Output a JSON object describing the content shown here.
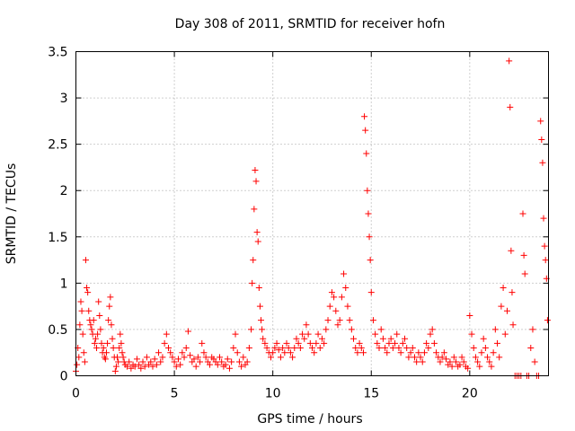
{
  "chart_data": {
    "type": "scatter",
    "title": "Day 308 of 2011, SRMTID for receiver hofn",
    "xlabel": "GPS time / hours",
    "ylabel": "SRMTID / TECUs",
    "xlim": [
      0,
      24
    ],
    "ylim": [
      0,
      3.5
    ],
    "x_ticks": [
      0,
      5,
      10,
      15,
      20
    ],
    "x_tick_labels": [
      "0",
      "5",
      "10",
      "15",
      "20"
    ],
    "y_ticks": [
      0,
      0.5,
      1,
      1.5,
      2,
      2.5,
      3,
      3.5
    ],
    "y_tick_labels": [
      "0",
      "0.5",
      "1",
      "1.5",
      "2",
      "2.5",
      "3",
      "3.5"
    ],
    "grid": true,
    "marker": "+",
    "color": "#ff0000",
    "series": [
      {
        "points": [
          [
            0.0,
            0.05
          ],
          [
            0.05,
            0.12
          ],
          [
            0.1,
            0.3
          ],
          [
            0.15,
            0.2
          ],
          [
            0.2,
            0.55
          ],
          [
            0.25,
            0.8
          ],
          [
            0.3,
            0.7
          ],
          [
            0.35,
            0.45
          ],
          [
            0.4,
            0.25
          ],
          [
            0.45,
            0.15
          ],
          [
            0.5,
            1.25
          ],
          [
            0.55,
            0.95
          ],
          [
            0.6,
            0.9
          ],
          [
            0.65,
            0.7
          ],
          [
            0.7,
            0.6
          ],
          [
            0.75,
            0.55
          ],
          [
            0.8,
            0.5
          ],
          [
            0.85,
            0.45
          ],
          [
            0.9,
            0.6
          ],
          [
            0.95,
            0.35
          ],
          [
            1.0,
            0.4
          ],
          [
            1.05,
            0.3
          ],
          [
            1.1,
            0.45
          ],
          [
            1.15,
            0.8
          ],
          [
            1.2,
            0.65
          ],
          [
            1.25,
            0.5
          ],
          [
            1.3,
            0.35
          ],
          [
            1.35,
            0.25
          ],
          [
            1.4,
            0.3
          ],
          [
            1.45,
            0.2
          ],
          [
            1.5,
            0.18
          ],
          [
            1.55,
            0.25
          ],
          [
            1.6,
            0.35
          ],
          [
            1.65,
            0.6
          ],
          [
            1.7,
            0.75
          ],
          [
            1.75,
            0.85
          ],
          [
            1.8,
            0.55
          ],
          [
            1.85,
            0.4
          ],
          [
            1.9,
            0.3
          ],
          [
            1.95,
            0.2
          ],
          [
            2.0,
            0.05
          ],
          [
            2.05,
            0.1
          ],
          [
            2.1,
            0.2
          ],
          [
            2.15,
            0.15
          ],
          [
            2.2,
            0.3
          ],
          [
            2.25,
            0.45
          ],
          [
            2.3,
            0.35
          ],
          [
            2.35,
            0.25
          ],
          [
            2.4,
            0.2
          ],
          [
            2.45,
            0.15
          ],
          [
            2.5,
            0.12
          ],
          [
            2.6,
            0.1
          ],
          [
            2.7,
            0.15
          ],
          [
            2.8,
            0.08
          ],
          [
            2.9,
            0.12
          ],
          [
            3.0,
            0.1
          ],
          [
            3.1,
            0.18
          ],
          [
            3.2,
            0.12
          ],
          [
            3.3,
            0.08
          ],
          [
            3.4,
            0.15
          ],
          [
            3.5,
            0.1
          ],
          [
            3.6,
            0.2
          ],
          [
            3.7,
            0.12
          ],
          [
            3.8,
            0.15
          ],
          [
            3.9,
            0.1
          ],
          [
            4.0,
            0.18
          ],
          [
            4.1,
            0.12
          ],
          [
            4.2,
            0.25
          ],
          [
            4.3,
            0.15
          ],
          [
            4.4,
            0.2
          ],
          [
            4.5,
            0.35
          ],
          [
            4.6,
            0.45
          ],
          [
            4.7,
            0.3
          ],
          [
            4.8,
            0.25
          ],
          [
            4.9,
            0.2
          ],
          [
            5.0,
            0.15
          ],
          [
            5.1,
            0.1
          ],
          [
            5.2,
            0.18
          ],
          [
            5.3,
            0.12
          ],
          [
            5.4,
            0.25
          ],
          [
            5.5,
            0.2
          ],
          [
            5.6,
            0.3
          ],
          [
            5.7,
            0.48
          ],
          [
            5.8,
            0.22
          ],
          [
            5.9,
            0.15
          ],
          [
            6.0,
            0.18
          ],
          [
            6.1,
            0.1
          ],
          [
            6.2,
            0.2
          ],
          [
            6.3,
            0.15
          ],
          [
            6.4,
            0.35
          ],
          [
            6.5,
            0.25
          ],
          [
            6.6,
            0.2
          ],
          [
            6.7,
            0.15
          ],
          [
            6.8,
            0.12
          ],
          [
            6.9,
            0.2
          ],
          [
            7.0,
            0.18
          ],
          [
            7.1,
            0.15
          ],
          [
            7.2,
            0.12
          ],
          [
            7.3,
            0.2
          ],
          [
            7.4,
            0.15
          ],
          [
            7.5,
            0.1
          ],
          [
            7.6,
            0.12
          ],
          [
            7.7,
            0.18
          ],
          [
            7.8,
            0.08
          ],
          [
            7.9,
            0.15
          ],
          [
            8.0,
            0.3
          ],
          [
            8.1,
            0.45
          ],
          [
            8.2,
            0.25
          ],
          [
            8.3,
            0.15
          ],
          [
            8.4,
            0.1
          ],
          [
            8.5,
            0.2
          ],
          [
            8.6,
            0.12
          ],
          [
            8.7,
            0.15
          ],
          [
            8.8,
            0.3
          ],
          [
            8.9,
            0.5
          ],
          [
            8.95,
            1.0
          ],
          [
            9.0,
            1.25
          ],
          [
            9.05,
            1.8
          ],
          [
            9.1,
            2.22
          ],
          [
            9.15,
            2.1
          ],
          [
            9.2,
            1.55
          ],
          [
            9.25,
            1.45
          ],
          [
            9.3,
            0.95
          ],
          [
            9.35,
            0.75
          ],
          [
            9.4,
            0.6
          ],
          [
            9.45,
            0.5
          ],
          [
            9.5,
            0.4
          ],
          [
            9.6,
            0.35
          ],
          [
            9.7,
            0.3
          ],
          [
            9.8,
            0.25
          ],
          [
            9.9,
            0.2
          ],
          [
            10.0,
            0.25
          ],
          [
            10.1,
            0.3
          ],
          [
            10.2,
            0.35
          ],
          [
            10.3,
            0.28
          ],
          [
            10.4,
            0.2
          ],
          [
            10.5,
            0.3
          ],
          [
            10.6,
            0.25
          ],
          [
            10.7,
            0.35
          ],
          [
            10.8,
            0.3
          ],
          [
            10.9,
            0.25
          ],
          [
            11.0,
            0.2
          ],
          [
            11.1,
            0.3
          ],
          [
            11.2,
            0.4
          ],
          [
            11.3,
            0.35
          ],
          [
            11.4,
            0.3
          ],
          [
            11.5,
            0.45
          ],
          [
            11.6,
            0.4
          ],
          [
            11.7,
            0.55
          ],
          [
            11.8,
            0.45
          ],
          [
            11.9,
            0.35
          ],
          [
            12.0,
            0.3
          ],
          [
            12.1,
            0.25
          ],
          [
            12.2,
            0.35
          ],
          [
            12.3,
            0.45
          ],
          [
            12.4,
            0.3
          ],
          [
            12.5,
            0.4
          ],
          [
            12.6,
            0.35
          ],
          [
            12.7,
            0.5
          ],
          [
            12.8,
            0.6
          ],
          [
            12.9,
            0.75
          ],
          [
            13.0,
            0.9
          ],
          [
            13.1,
            0.85
          ],
          [
            13.2,
            0.7
          ],
          [
            13.3,
            0.55
          ],
          [
            13.4,
            0.6
          ],
          [
            13.5,
            0.85
          ],
          [
            13.6,
            1.1
          ],
          [
            13.7,
            0.95
          ],
          [
            13.8,
            0.75
          ],
          [
            13.9,
            0.6
          ],
          [
            14.0,
            0.5
          ],
          [
            14.1,
            0.4
          ],
          [
            14.2,
            0.3
          ],
          [
            14.3,
            0.25
          ],
          [
            14.4,
            0.35
          ],
          [
            14.5,
            0.3
          ],
          [
            14.6,
            0.25
          ],
          [
            14.65,
            2.8
          ],
          [
            14.7,
            2.65
          ],
          [
            14.75,
            2.4
          ],
          [
            14.8,
            2.0
          ],
          [
            14.85,
            1.75
          ],
          [
            14.9,
            1.5
          ],
          [
            14.95,
            1.25
          ],
          [
            15.0,
            0.9
          ],
          [
            15.1,
            0.6
          ],
          [
            15.2,
            0.45
          ],
          [
            15.3,
            0.35
          ],
          [
            15.4,
            0.3
          ],
          [
            15.5,
            0.5
          ],
          [
            15.6,
            0.4
          ],
          [
            15.7,
            0.3
          ],
          [
            15.8,
            0.25
          ],
          [
            15.9,
            0.35
          ],
          [
            16.0,
            0.4
          ],
          [
            16.1,
            0.3
          ],
          [
            16.2,
            0.35
          ],
          [
            16.3,
            0.45
          ],
          [
            16.4,
            0.3
          ],
          [
            16.5,
            0.25
          ],
          [
            16.6,
            0.35
          ],
          [
            16.7,
            0.4
          ],
          [
            16.8,
            0.3
          ],
          [
            16.9,
            0.2
          ],
          [
            17.0,
            0.25
          ],
          [
            17.1,
            0.3
          ],
          [
            17.2,
            0.2
          ],
          [
            17.3,
            0.15
          ],
          [
            17.4,
            0.25
          ],
          [
            17.5,
            0.2
          ],
          [
            17.6,
            0.15
          ],
          [
            17.7,
            0.25
          ],
          [
            17.8,
            0.35
          ],
          [
            17.9,
            0.3
          ],
          [
            18.0,
            0.45
          ],
          [
            18.1,
            0.5
          ],
          [
            18.2,
            0.35
          ],
          [
            18.3,
            0.25
          ],
          [
            18.4,
            0.2
          ],
          [
            18.5,
            0.15
          ],
          [
            18.6,
            0.2
          ],
          [
            18.7,
            0.25
          ],
          [
            18.8,
            0.18
          ],
          [
            18.9,
            0.12
          ],
          [
            19.0,
            0.15
          ],
          [
            19.1,
            0.1
          ],
          [
            19.2,
            0.2
          ],
          [
            19.3,
            0.15
          ],
          [
            19.4,
            0.1
          ],
          [
            19.5,
            0.12
          ],
          [
            19.6,
            0.2
          ],
          [
            19.7,
            0.15
          ],
          [
            19.8,
            0.1
          ],
          [
            19.9,
            0.08
          ],
          [
            20.0,
            0.65
          ],
          [
            20.1,
            0.45
          ],
          [
            20.2,
            0.3
          ],
          [
            20.3,
            0.2
          ],
          [
            20.4,
            0.15
          ],
          [
            20.5,
            0.1
          ],
          [
            20.6,
            0.25
          ],
          [
            20.7,
            0.4
          ],
          [
            20.8,
            0.3
          ],
          [
            20.9,
            0.2
          ],
          [
            21.0,
            0.15
          ],
          [
            21.1,
            0.1
          ],
          [
            21.2,
            0.25
          ],
          [
            21.3,
            0.5
          ],
          [
            21.4,
            0.35
          ],
          [
            21.5,
            0.2
          ],
          [
            21.6,
            0.75
          ],
          [
            21.7,
            0.95
          ],
          [
            21.8,
            0.45
          ],
          [
            21.9,
            0.7
          ],
          [
            22.0,
            3.4
          ],
          [
            22.05,
            2.9
          ],
          [
            22.1,
            1.35
          ],
          [
            22.15,
            0.9
          ],
          [
            22.2,
            0.55
          ],
          [
            22.3,
            0.0
          ],
          [
            22.4,
            0.0
          ],
          [
            22.5,
            0.0
          ],
          [
            22.6,
            0.0
          ],
          [
            22.7,
            1.75
          ],
          [
            22.75,
            1.3
          ],
          [
            22.8,
            1.1
          ],
          [
            22.9,
            0.0
          ],
          [
            23.0,
            0.0
          ],
          [
            23.1,
            0.3
          ],
          [
            23.2,
            0.5
          ],
          [
            23.3,
            0.15
          ],
          [
            23.4,
            0.0
          ],
          [
            23.5,
            0.0
          ],
          [
            23.6,
            2.75
          ],
          [
            23.65,
            2.55
          ],
          [
            23.7,
            2.3
          ],
          [
            23.75,
            1.7
          ],
          [
            23.8,
            1.4
          ],
          [
            23.85,
            1.25
          ],
          [
            23.9,
            1.05
          ],
          [
            23.95,
            0.6
          ]
        ]
      }
    ]
  }
}
